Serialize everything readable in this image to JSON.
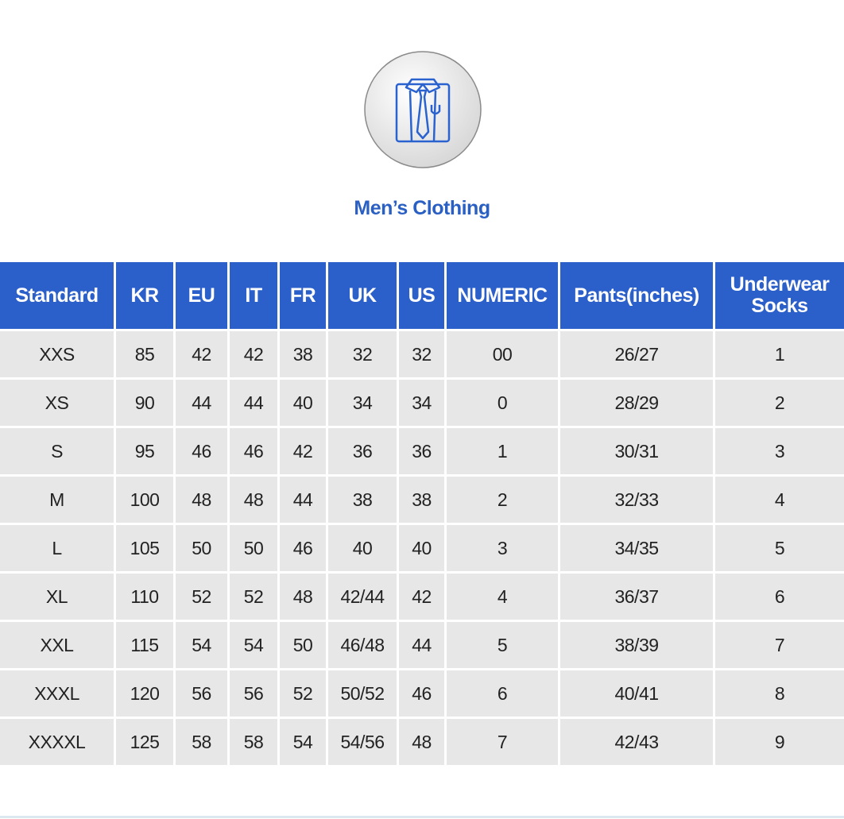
{
  "title": "Men’s Clothing",
  "table": {
    "header": [
      "Standard",
      "KR",
      "EU",
      "IT",
      "FR",
      "UK",
      "US",
      "NUMERIC",
      "Pants(inches)",
      "Underwear Socks"
    ],
    "rows": [
      [
        "XXS",
        "85",
        "42",
        "42",
        "38",
        "32",
        "32",
        "00",
        "26/27",
        "1"
      ],
      [
        "XS",
        "90",
        "44",
        "44",
        "40",
        "34",
        "34",
        "0",
        "28/29",
        "2"
      ],
      [
        "S",
        "95",
        "46",
        "46",
        "42",
        "36",
        "36",
        "1",
        "30/31",
        "3"
      ],
      [
        "M",
        "100",
        "48",
        "48",
        "44",
        "38",
        "38",
        "2",
        "32/33",
        "4"
      ],
      [
        "L",
        "105",
        "50",
        "50",
        "46",
        "40",
        "40",
        "3",
        "34/35",
        "5"
      ],
      [
        "XL",
        "110",
        "52",
        "52",
        "48",
        "42/44",
        "42",
        "4",
        "36/37",
        "6"
      ],
      [
        "XXL",
        "115",
        "54",
        "54",
        "50",
        "46/48",
        "44",
        "5",
        "38/39",
        "7"
      ],
      [
        "XXXL",
        "120",
        "56",
        "56",
        "52",
        "50/52",
        "46",
        "6",
        "40/41",
        "8"
      ],
      [
        "XXXXL",
        "125",
        "58",
        "58",
        "54",
        "54/56",
        "48",
        "7",
        "42/43",
        "9"
      ]
    ]
  }
}
